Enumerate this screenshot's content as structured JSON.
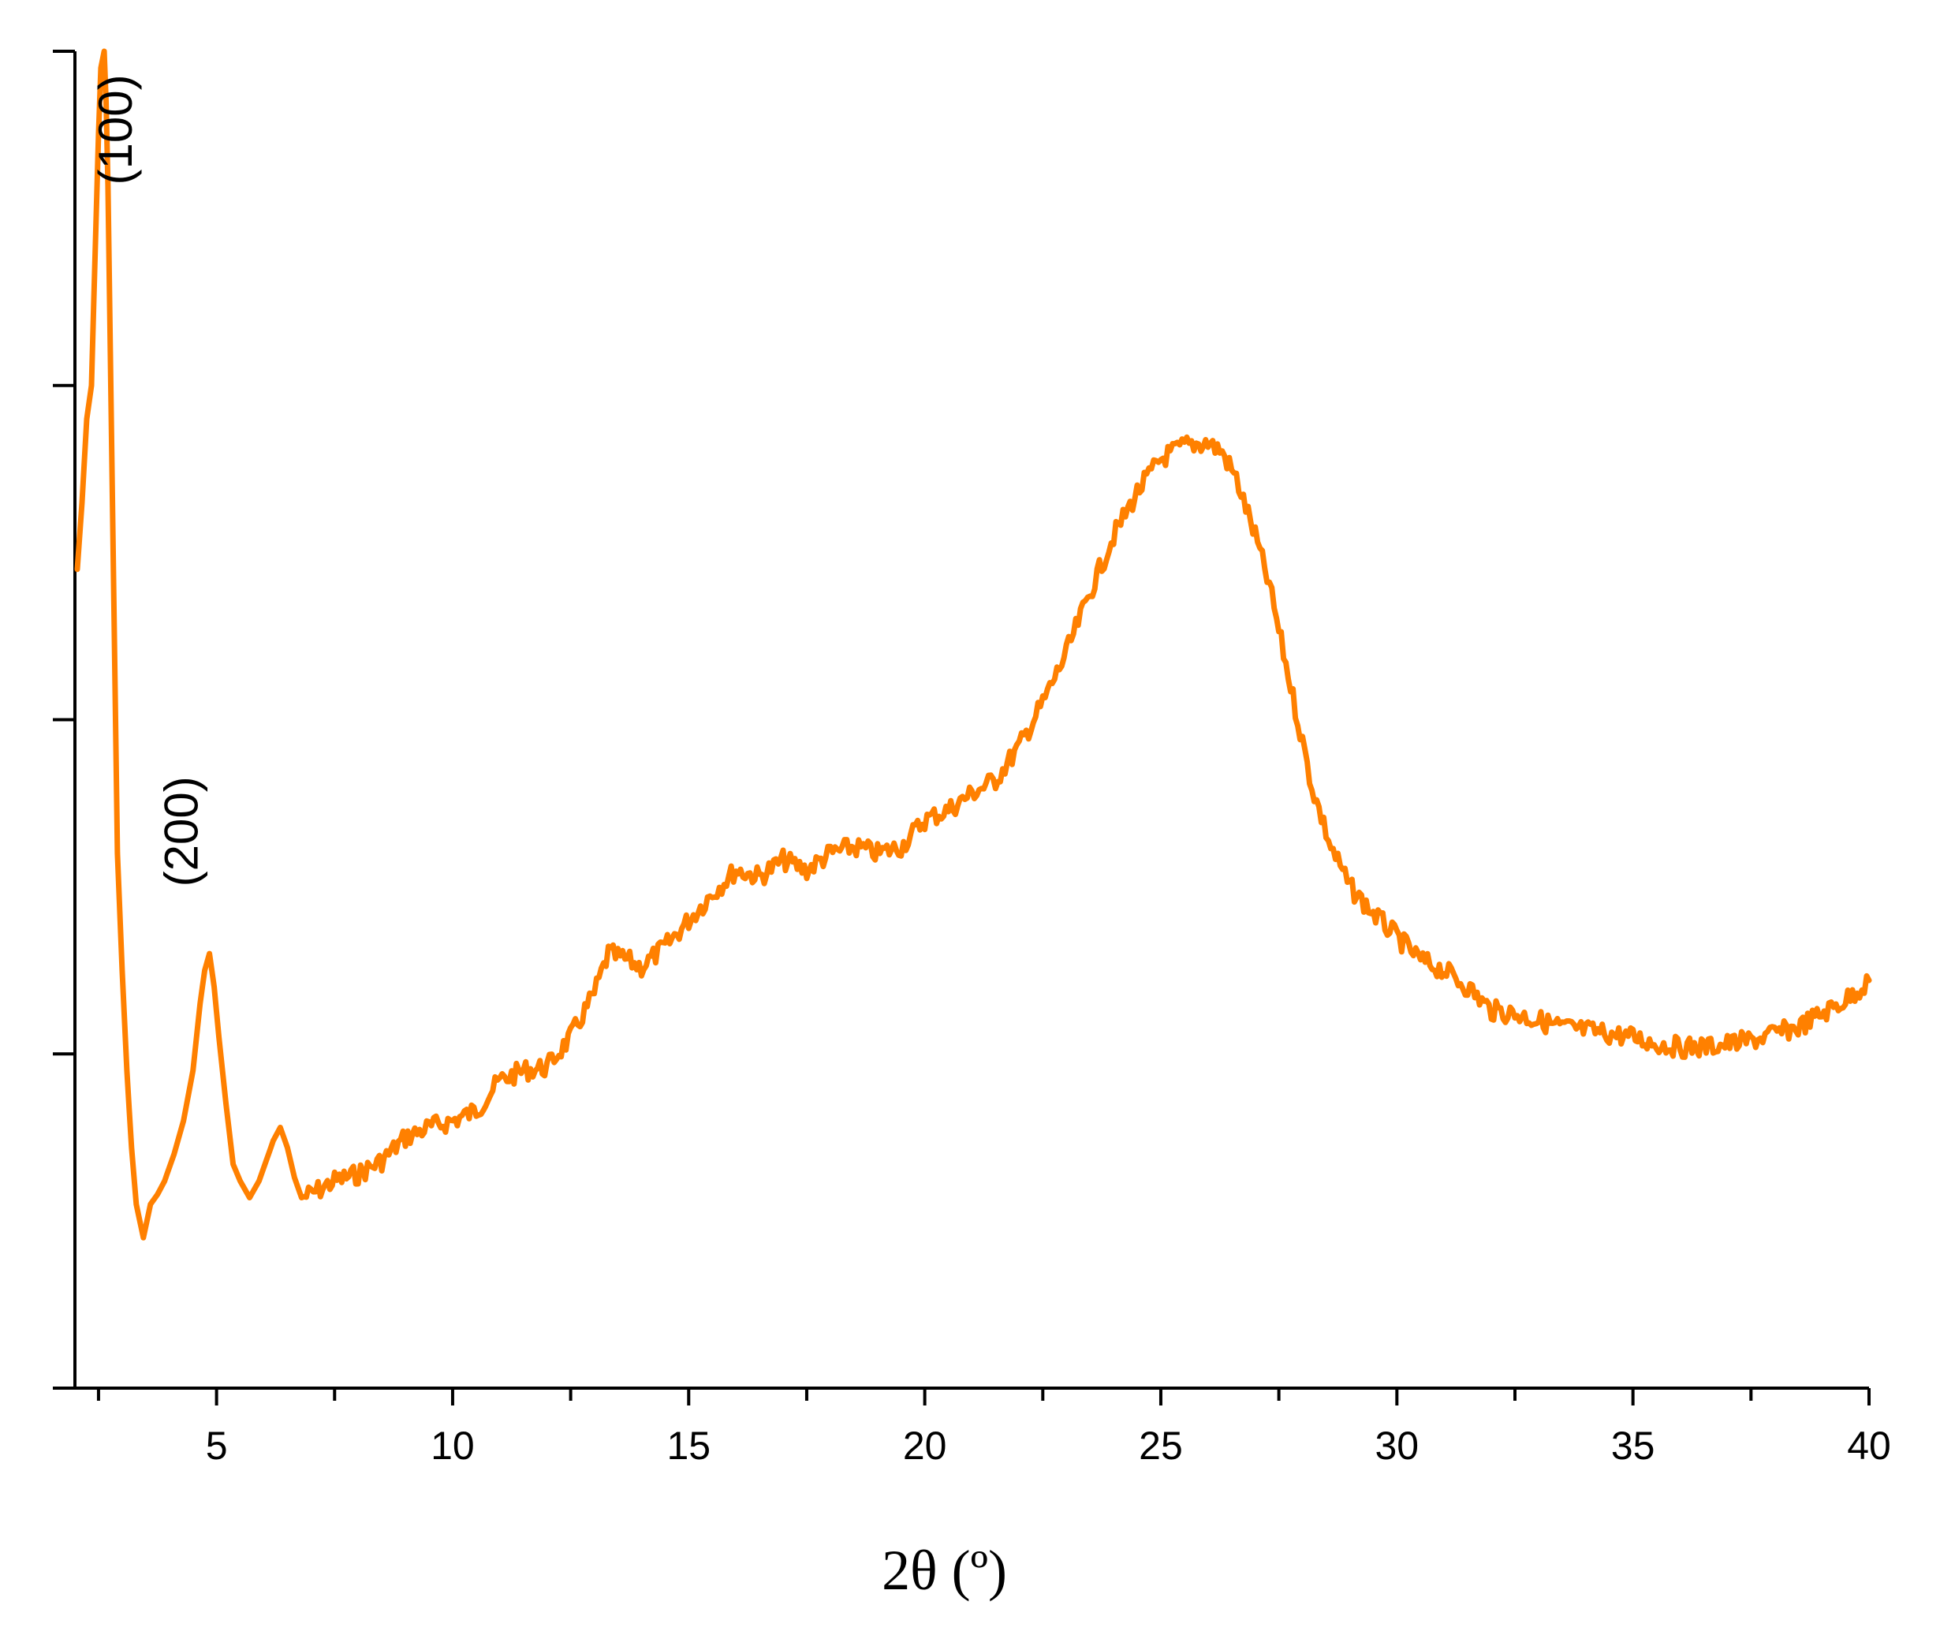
{
  "chart_data": {
    "type": "line",
    "title": "",
    "xlabel": "2θ (º)",
    "ylabel": "",
    "xlim": [
      2,
      40
    ],
    "ylim": [
      0,
      4
    ],
    "x_major_ticks": [
      5,
      10,
      15,
      20,
      25,
      30,
      35,
      40
    ],
    "x_tick_labels": [
      "5",
      "10",
      "15",
      "20",
      "25",
      "30",
      "35",
      "40"
    ],
    "y_major_ticks": [
      0,
      1,
      2,
      3,
      4
    ],
    "grid": false,
    "legend": "none",
    "colors": {
      "line": "#ff8000",
      "axes": "#000000"
    },
    "annotations": [
      {
        "text": "(100)",
        "x": 3.2,
        "y": 3.6
      },
      {
        "text": "(200)",
        "x": 4.6,
        "y": 1.5
      }
    ],
    "series": [
      {
        "name": "",
        "color": "#ff8000",
        "points": [
          [
            2.05,
            2.45
          ],
          [
            2.15,
            2.65
          ],
          [
            2.25,
            2.9
          ],
          [
            2.35,
            3.0
          ],
          [
            2.45,
            3.5
          ],
          [
            2.5,
            3.75
          ],
          [
            2.55,
            3.95
          ],
          [
            2.62,
            4.0
          ],
          [
            2.66,
            3.85
          ],
          [
            2.7,
            3.6
          ],
          [
            2.75,
            3.1
          ],
          [
            2.8,
            2.6
          ],
          [
            2.85,
            2.1
          ],
          [
            2.9,
            1.6
          ],
          [
            3.0,
            1.25
          ],
          [
            3.1,
            0.95
          ],
          [
            3.2,
            0.72
          ],
          [
            3.3,
            0.55
          ],
          [
            3.45,
            0.45
          ],
          [
            3.6,
            0.55
          ],
          [
            3.75,
            0.58
          ],
          [
            3.9,
            0.62
          ],
          [
            4.1,
            0.7
          ],
          [
            4.3,
            0.8
          ],
          [
            4.5,
            0.95
          ],
          [
            4.65,
            1.15
          ],
          [
            4.75,
            1.25
          ],
          [
            4.85,
            1.3
          ],
          [
            4.95,
            1.2
          ],
          [
            5.05,
            1.05
          ],
          [
            5.2,
            0.85
          ],
          [
            5.35,
            0.67
          ],
          [
            5.5,
            0.62
          ],
          [
            5.7,
            0.57
          ],
          [
            5.9,
            0.62
          ],
          [
            6.05,
            0.68
          ],
          [
            6.2,
            0.74
          ],
          [
            6.35,
            0.78
          ],
          [
            6.5,
            0.72
          ],
          [
            6.65,
            0.63
          ],
          [
            6.8,
            0.57
          ],
          [
            7.0,
            0.58
          ],
          [
            7.5,
            0.62
          ],
          [
            8.0,
            0.64
          ],
          [
            8.5,
            0.68
          ],
          [
            9.0,
            0.75
          ],
          [
            9.5,
            0.78
          ],
          [
            10.0,
            0.8
          ],
          [
            10.5,
            0.83
          ],
          [
            11.0,
            0.92
          ],
          [
            11.5,
            0.95
          ],
          [
            12.0,
            0.96
          ],
          [
            12.5,
            1.05
          ],
          [
            13.0,
            1.18
          ],
          [
            13.3,
            1.3
          ],
          [
            13.7,
            1.28
          ],
          [
            14.0,
            1.26
          ],
          [
            14.5,
            1.32
          ],
          [
            15.0,
            1.4
          ],
          [
            15.5,
            1.48
          ],
          [
            16.0,
            1.55
          ],
          [
            16.5,
            1.53
          ],
          [
            17.0,
            1.58
          ],
          [
            17.5,
            1.55
          ],
          [
            18.0,
            1.6
          ],
          [
            18.5,
            1.62
          ],
          [
            19.0,
            1.6
          ],
          [
            19.5,
            1.62
          ],
          [
            20.0,
            1.7
          ],
          [
            20.5,
            1.73
          ],
          [
            21.0,
            1.78
          ],
          [
            21.5,
            1.82
          ],
          [
            22.0,
            1.92
          ],
          [
            22.5,
            2.05
          ],
          [
            23.0,
            2.2
          ],
          [
            23.5,
            2.38
          ],
          [
            24.0,
            2.55
          ],
          [
            24.5,
            2.68
          ],
          [
            25.0,
            2.78
          ],
          [
            25.5,
            2.82
          ],
          [
            26.0,
            2.83
          ],
          [
            26.3,
            2.8
          ],
          [
            26.6,
            2.72
          ],
          [
            27.0,
            2.55
          ],
          [
            27.3,
            2.4
          ],
          [
            27.6,
            2.2
          ],
          [
            27.9,
            2.0
          ],
          [
            28.2,
            1.8
          ],
          [
            28.6,
            1.62
          ],
          [
            29.0,
            1.5
          ],
          [
            29.5,
            1.42
          ],
          [
            30.0,
            1.35
          ],
          [
            30.5,
            1.28
          ],
          [
            31.0,
            1.25
          ],
          [
            31.5,
            1.2
          ],
          [
            32.0,
            1.13
          ],
          [
            32.5,
            1.12
          ],
          [
            33.0,
            1.1
          ],
          [
            33.5,
            1.08
          ],
          [
            34.0,
            1.07
          ],
          [
            34.5,
            1.06
          ],
          [
            35.0,
            1.05
          ],
          [
            35.5,
            1.03
          ],
          [
            36.0,
            1.02
          ],
          [
            36.5,
            1.02
          ],
          [
            37.0,
            1.03
          ],
          [
            37.5,
            1.04
          ],
          [
            38.0,
            1.06
          ],
          [
            38.5,
            1.08
          ],
          [
            39.0,
            1.12
          ],
          [
            39.5,
            1.16
          ],
          [
            40.0,
            1.22
          ]
        ]
      }
    ]
  }
}
